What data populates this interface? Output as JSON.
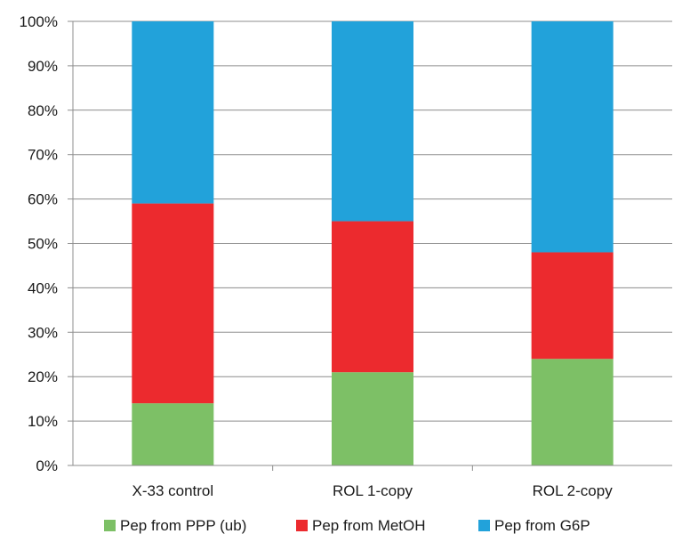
{
  "chart_data": {
    "type": "bar",
    "stacked": true,
    "percent": true,
    "categories": [
      "X-33 control",
      "ROL 1-copy",
      "ROL 2-copy"
    ],
    "series": [
      {
        "name": "Pep from PPP (ub)",
        "color": "#7dc066",
        "values": [
          14,
          21,
          24
        ]
      },
      {
        "name": "Pep from MetOH",
        "color": "#ec2a2e",
        "values": [
          45,
          34,
          24
        ]
      },
      {
        "name": "Pep from G6P",
        "color": "#22a2da",
        "values": [
          41,
          45,
          52
        ]
      }
    ],
    "ylim": [
      0,
      100
    ],
    "yticks": [
      "0%",
      "10%",
      "20%",
      "30%",
      "40%",
      "50%",
      "60%",
      "70%",
      "80%",
      "90%",
      "100%"
    ],
    "grid": true,
    "legend_position": "bottom",
    "title": "",
    "xlabel": "",
    "ylabel": ""
  }
}
